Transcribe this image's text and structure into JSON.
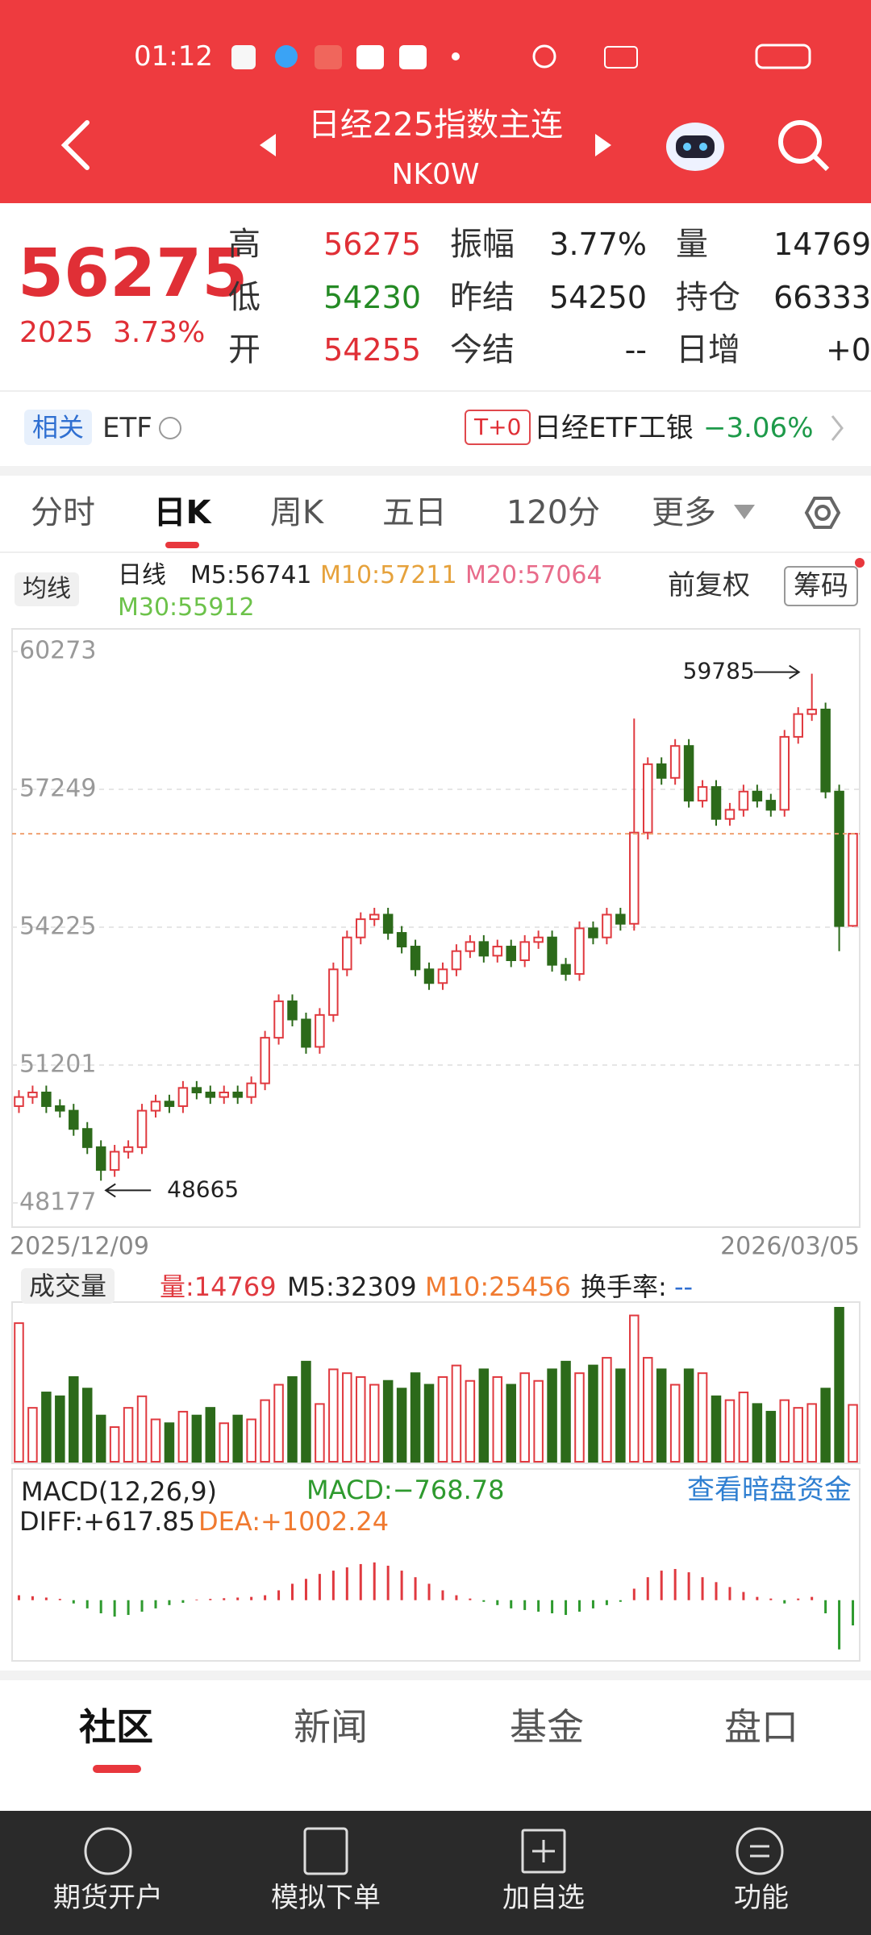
{
  "status": {
    "time": "01:12"
  },
  "header": {
    "title": "日经225指数主连",
    "code": "NK0W"
  },
  "quote": {
    "price": "56275",
    "change": "2025",
    "pct": "3.73%",
    "fields": [
      [
        {
          "label": "高",
          "value": "56275"
        },
        {
          "label": "振幅",
          "value": "3.77%"
        },
        {
          "label": "量",
          "value": "14769"
        }
      ],
      [
        {
          "label": "低",
          "value": "54230"
        },
        {
          "label": "昨结",
          "value": "54250"
        },
        {
          "label": "持仓",
          "value": "66333"
        }
      ],
      [
        {
          "label": "开",
          "value": "54255"
        },
        {
          "label": "今结",
          "value": "--"
        },
        {
          "label": "日增",
          "value": "+0"
        }
      ]
    ]
  },
  "etf": {
    "tag": "相关",
    "name": "ETF",
    "badge": "T+0",
    "fund": "日经ETF工银",
    "pct": "−3.06%"
  },
  "tabs": [
    "分时",
    "日K",
    "周K",
    "五日",
    "120分",
    "更多"
  ],
  "indicators": {
    "ma": "均线",
    "period": "日线",
    "m5": "M5:56741",
    "m10": "M10:57211",
    "m20": "M20:57064",
    "m30": "M30:55912",
    "adjust": "前复权",
    "chip": "筹码"
  },
  "chart_data": {
    "type": "candlestick",
    "ylim": [
      48177,
      60273
    ],
    "yticks": [
      60273,
      57249,
      54225,
      51201,
      48177
    ],
    "start_date": "2025/12/09",
    "end_date": "2026/03/05",
    "high_label": "59785",
    "low_label": "48665",
    "candles": [
      [
        50300,
        50650,
        50150,
        50500
      ],
      [
        50500,
        50750,
        50350,
        50600
      ],
      [
        50600,
        50750,
        50150,
        50300
      ],
      [
        50300,
        50450,
        50050,
        50200
      ],
      [
        50200,
        50350,
        49650,
        49800
      ],
      [
        49800,
        49950,
        49250,
        49400
      ],
      [
        49400,
        49550,
        48665,
        48900
      ],
      [
        48900,
        49450,
        48750,
        49300
      ],
      [
        49300,
        49550,
        49150,
        49400
      ],
      [
        49400,
        50350,
        49250,
        50200
      ],
      [
        50200,
        50550,
        50050,
        50400
      ],
      [
        50400,
        50550,
        50150,
        50300
      ],
      [
        50300,
        50850,
        50150,
        50700
      ],
      [
        50700,
        50850,
        50450,
        50600
      ],
      [
        50600,
        50750,
        50350,
        50500
      ],
      [
        50500,
        50750,
        50350,
        50600
      ],
      [
        50600,
        50750,
        50350,
        50500
      ],
      [
        50500,
        50950,
        50350,
        50800
      ],
      [
        50800,
        51950,
        50650,
        51800
      ],
      [
        51800,
        52750,
        51650,
        52600
      ],
      [
        52600,
        52750,
        52050,
        52200
      ],
      [
        52200,
        52350,
        51450,
        51600
      ],
      [
        51600,
        52450,
        51450,
        52300
      ],
      [
        52300,
        53450,
        52150,
        53300
      ],
      [
        53300,
        54150,
        53150,
        54000
      ],
      [
        54000,
        54550,
        53850,
        54400
      ],
      [
        54400,
        54650,
        54250,
        54500
      ],
      [
        54500,
        54650,
        53950,
        54100
      ],
      [
        54100,
        54250,
        53650,
        53800
      ],
      [
        53800,
        53950,
        53150,
        53300
      ],
      [
        53300,
        53450,
        52850,
        53000
      ],
      [
        53000,
        53450,
        52850,
        53300
      ],
      [
        53300,
        53850,
        53150,
        53700
      ],
      [
        53700,
        54050,
        53550,
        53900
      ],
      [
        53900,
        54050,
        53450,
        53600
      ],
      [
        53600,
        53950,
        53450,
        53800
      ],
      [
        53800,
        53950,
        53350,
        53500
      ],
      [
        53500,
        54050,
        53350,
        53900
      ],
      [
        53900,
        54150,
        53750,
        54000
      ],
      [
        54000,
        54150,
        53250,
        53400
      ],
      [
        53400,
        53550,
        53050,
        53200
      ],
      [
        53200,
        54350,
        53050,
        54200
      ],
      [
        54200,
        54350,
        53850,
        54000
      ],
      [
        54000,
        54650,
        53850,
        54500
      ],
      [
        54500,
        54650,
        54150,
        54300
      ],
      [
        54300,
        58800,
        54150,
        56300
      ],
      [
        56300,
        57950,
        56150,
        57800
      ],
      [
        57800,
        57950,
        57350,
        57500
      ],
      [
        57500,
        58350,
        57350,
        58200
      ],
      [
        58200,
        58350,
        56850,
        57000
      ],
      [
        57000,
        57450,
        56850,
        57300
      ],
      [
        57300,
        57450,
        56450,
        56600
      ],
      [
        56600,
        56950,
        56450,
        56800
      ],
      [
        56800,
        57350,
        56650,
        57200
      ],
      [
        57200,
        57350,
        56850,
        57000
      ],
      [
        57000,
        57150,
        56650,
        56800
      ],
      [
        56800,
        58550,
        56650,
        58400
      ],
      [
        58400,
        59050,
        58250,
        58900
      ],
      [
        58900,
        59785,
        58750,
        59000
      ],
      [
        59000,
        59150,
        57050,
        57200
      ],
      [
        57200,
        57350,
        53700,
        54250
      ],
      [
        54255,
        56275,
        54230,
        56275
      ]
    ],
    "volume": {
      "title": "成交量",
      "current": "量:14769",
      "m5": "M5:32309",
      "m10": "M10:25456",
      "turnover": "换手率:",
      "turnover_value": "--",
      "ylim": [
        0,
        40000
      ],
      "values": [
        36000,
        14000,
        18000,
        17000,
        22000,
        19000,
        12000,
        9000,
        14000,
        17000,
        11000,
        10000,
        13000,
        12000,
        14000,
        10000,
        12000,
        11000,
        16000,
        20000,
        22000,
        26000,
        15000,
        24000,
        23000,
        22000,
        20000,
        21000,
        19000,
        23000,
        20000,
        22000,
        25000,
        21000,
        24000,
        22000,
        20000,
        23000,
        21000,
        24000,
        26000,
        23000,
        25000,
        27000,
        24000,
        38000,
        27000,
        24000,
        20000,
        24000,
        23000,
        17000,
        16000,
        18000,
        15000,
        13000,
        16000,
        14000,
        15000,
        19000,
        40000,
        14769
      ]
    },
    "macd": {
      "title": "MACD(12,26,9)",
      "macd": "MACD:−768.78",
      "link": "查看暗盘资金",
      "diff": "DIFF:+617.85",
      "dea": "DEA:+1002.24",
      "ylim": [
        -1800,
        3800
      ],
      "values": [
        150,
        120,
        80,
        40,
        -100,
        -250,
        -400,
        -500,
        -450,
        -350,
        -250,
        -150,
        -80,
        20,
        40,
        60,
        80,
        100,
        150,
        300,
        500,
        650,
        800,
        900,
        1000,
        1100,
        1150,
        1050,
        900,
        700,
        500,
        300,
        150,
        50,
        -50,
        -150,
        -250,
        -300,
        -350,
        -400,
        -450,
        -350,
        -250,
        -150,
        -50,
        350,
        700,
        900,
        950,
        850,
        700,
        550,
        400,
        250,
        100,
        50,
        -100,
        50,
        100,
        -400,
        -1500,
        -768.78
      ]
    }
  },
  "bottom_tabs": [
    "社区",
    "新闻",
    "基金",
    "盘口"
  ],
  "nav": [
    "期货开户",
    "模拟下单",
    "加自选",
    "功能"
  ]
}
